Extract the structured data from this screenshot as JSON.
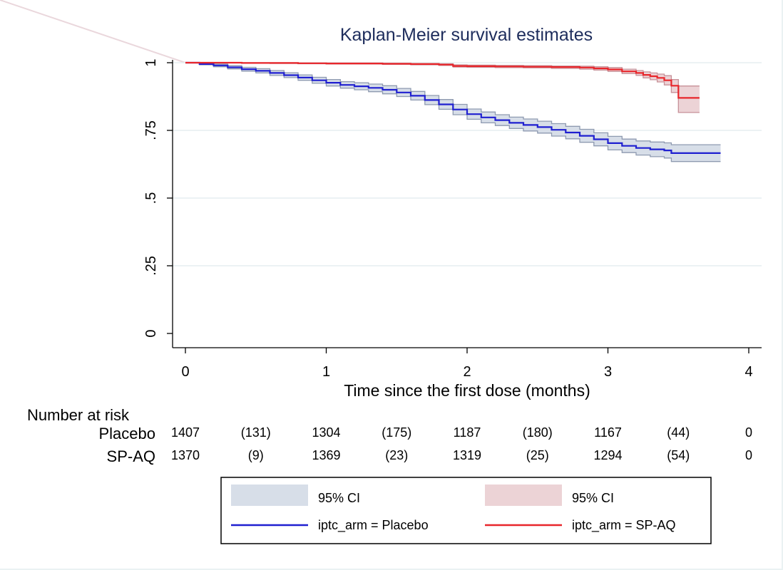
{
  "chart_data": {
    "type": "line",
    "title": "Kaplan-Meier survival estimates",
    "xlabel": "Time since the first dose (months)",
    "ylabel": "",
    "xlim": [
      0,
      4
    ],
    "ylim": [
      0,
      1
    ],
    "x_ticks": [
      0,
      1,
      2,
      3,
      4
    ],
    "x_tick_labels": [
      "0",
      "1",
      "2",
      "3",
      "4"
    ],
    "y_ticks": [
      0,
      0.25,
      0.5,
      0.75,
      1
    ],
    "y_tick_labels": [
      "0",
      ".25",
      ".5",
      ".75",
      "1"
    ],
    "grid": true,
    "colors": {
      "placebo": "#1f1fd0",
      "spaq": "#e8262b",
      "placebo_ci": "#d7dee8",
      "spaq_ci": "#ecd3d6",
      "ci_edge_placebo": "#8e9ab0",
      "ci_edge_spaq": "#c79098"
    },
    "series": [
      {
        "key": "placebo",
        "x": [
          0,
          0.1,
          0.2,
          0.3,
          0.4,
          0.5,
          0.6,
          0.7,
          0.8,
          0.9,
          1.0,
          1.1,
          1.2,
          1.3,
          1.4,
          1.5,
          1.6,
          1.7,
          1.8,
          1.9,
          2.0,
          2.1,
          2.2,
          2.3,
          2.4,
          2.5,
          2.6,
          2.7,
          2.8,
          2.9,
          3.0,
          3.1,
          3.2,
          3.3,
          3.4,
          3.45,
          3.5,
          3.6,
          3.7,
          3.8
        ],
        "y": [
          1.0,
          0.995,
          0.99,
          0.983,
          0.976,
          0.97,
          0.962,
          0.954,
          0.945,
          0.935,
          0.926,
          0.918,
          0.913,
          0.907,
          0.9,
          0.89,
          0.878,
          0.862,
          0.846,
          0.827,
          0.81,
          0.798,
          0.788,
          0.778,
          0.77,
          0.762,
          0.752,
          0.742,
          0.73,
          0.717,
          0.703,
          0.693,
          0.685,
          0.68,
          0.676,
          0.666,
          0.666,
          0.666,
          0.666,
          0.666
        ],
        "ci_low": [
          1.0,
          0.992,
          0.985,
          0.977,
          0.969,
          0.962,
          0.953,
          0.945,
          0.935,
          0.924,
          0.914,
          0.906,
          0.9,
          0.893,
          0.885,
          0.875,
          0.862,
          0.845,
          0.828,
          0.808,
          0.791,
          0.778,
          0.768,
          0.757,
          0.748,
          0.74,
          0.729,
          0.719,
          0.706,
          0.693,
          0.678,
          0.668,
          0.659,
          0.653,
          0.648,
          0.635,
          0.635,
          0.635,
          0.635,
          0.635
        ],
        "ci_high": [
          1.0,
          0.998,
          0.995,
          0.989,
          0.983,
          0.978,
          0.971,
          0.963,
          0.955,
          0.946,
          0.938,
          0.93,
          0.926,
          0.921,
          0.915,
          0.905,
          0.894,
          0.879,
          0.864,
          0.846,
          0.829,
          0.818,
          0.808,
          0.799,
          0.792,
          0.784,
          0.775,
          0.765,
          0.754,
          0.741,
          0.728,
          0.718,
          0.711,
          0.707,
          0.704,
          0.697,
          0.697,
          0.697,
          0.697,
          0.697
        ]
      },
      {
        "key": "spaq",
        "x": [
          0,
          0.2,
          0.4,
          0.6,
          0.8,
          1.0,
          1.2,
          1.4,
          1.6,
          1.8,
          1.9,
          2.0,
          2.2,
          2.4,
          2.6,
          2.8,
          2.9,
          3.0,
          3.1,
          3.2,
          3.25,
          3.3,
          3.35,
          3.4,
          3.45,
          3.5,
          3.55,
          3.6,
          3.65
        ],
        "y": [
          1.0,
          1.0,
          0.999,
          0.999,
          0.998,
          0.997,
          0.997,
          0.996,
          0.995,
          0.993,
          0.988,
          0.987,
          0.986,
          0.985,
          0.984,
          0.982,
          0.979,
          0.975,
          0.968,
          0.962,
          0.955,
          0.95,
          0.944,
          0.935,
          0.915,
          0.87,
          0.87,
          0.87,
          0.87
        ],
        "ci_low": [
          1.0,
          1.0,
          0.998,
          0.997,
          0.996,
          0.995,
          0.995,
          0.994,
          0.992,
          0.99,
          0.984,
          0.983,
          0.982,
          0.981,
          0.979,
          0.976,
          0.973,
          0.968,
          0.96,
          0.953,
          0.944,
          0.937,
          0.929,
          0.918,
          0.89,
          0.816,
          0.816,
          0.816,
          0.816
        ],
        "ci_high": [
          1.0,
          1.0,
          1.0,
          1.0,
          0.999,
          0.999,
          0.999,
          0.998,
          0.997,
          0.996,
          0.992,
          0.991,
          0.99,
          0.989,
          0.988,
          0.987,
          0.985,
          0.982,
          0.976,
          0.971,
          0.966,
          0.962,
          0.958,
          0.952,
          0.938,
          0.914,
          0.914,
          0.914,
          0.914
        ]
      }
    ],
    "risk_table": {
      "heading": "Number at risk",
      "rows": [
        {
          "label": "Placebo",
          "values": [
            "1407",
            "(131)",
            "1304",
            "(175)",
            "1187",
            "(180)",
            "1167",
            "(44)",
            "0"
          ]
        },
        {
          "label": "SP-AQ",
          "values": [
            "1370",
            "(9)",
            "1369",
            "(23)",
            "1319",
            "(25)",
            "1294",
            "(54)",
            "0"
          ]
        }
      ],
      "x_positions": [
        0,
        0.5,
        1,
        1.5,
        2,
        2.5,
        3,
        3.5,
        4
      ]
    },
    "legend": {
      "placement": "bottom",
      "items": [
        {
          "label": "95% CI",
          "kind": "ci_placebo"
        },
        {
          "label": "95% CI",
          "kind": "ci_spaq"
        },
        {
          "label": "iptc_arm = Placebo",
          "kind": "line_placebo"
        },
        {
          "label": "iptc_arm = SP-AQ",
          "kind": "line_spaq"
        }
      ]
    }
  }
}
